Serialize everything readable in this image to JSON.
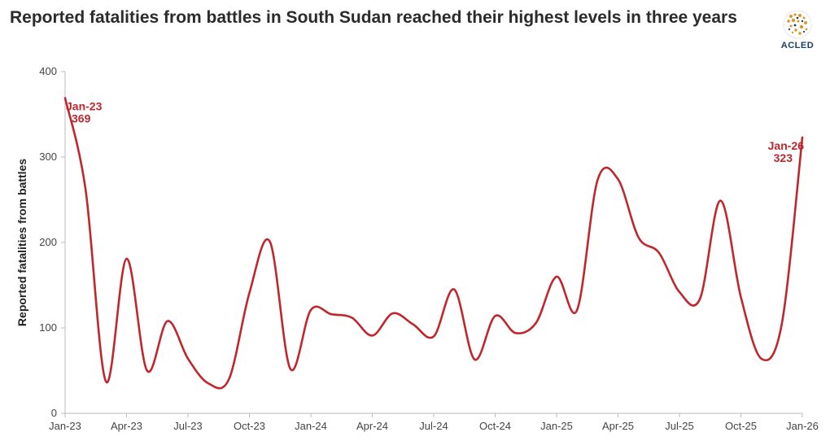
{
  "header": {
    "title": "Reported fatalities from battles in South Sudan reached their highest levels in three years"
  },
  "logo": {
    "text": "ACLED"
  },
  "colors": {
    "line": "#c0272d",
    "axis": "#bbbbbb",
    "text": "#444444",
    "logo_dots": "#d9962b"
  },
  "chart_data": {
    "type": "line",
    "title": "Reported fatalities from battles in South Sudan reached their highest levels in three years",
    "xlabel": "",
    "ylabel": "Reported fatalities from battles",
    "ylim": [
      0,
      400
    ],
    "yticks": [
      0,
      100,
      200,
      300,
      400
    ],
    "xticks": [
      {
        "i": 0,
        "label": "Jan-23"
      },
      {
        "i": 3,
        "label": "Apr-23"
      },
      {
        "i": 6,
        "label": "Jul-23"
      },
      {
        "i": 9,
        "label": "Oct-23"
      },
      {
        "i": 12,
        "label": "Jan-24"
      },
      {
        "i": 15,
        "label": "Apr-24"
      },
      {
        "i": 18,
        "label": "Jul-24"
      },
      {
        "i": 21,
        "label": "Oct-24"
      },
      {
        "i": 24,
        "label": "Jan-25"
      },
      {
        "i": 27,
        "label": "Apr-25"
      },
      {
        "i": 30,
        "label": "Jul-25"
      },
      {
        "i": 33,
        "label": "Oct-25"
      },
      {
        "i": 36,
        "label": "Jan-26"
      }
    ],
    "series": [
      {
        "name": "Reported fatalities from battles",
        "x": [
          "Jan-23",
          "Feb-23",
          "Mar-23",
          "Apr-23",
          "May-23",
          "Jun-23",
          "Jul-23",
          "Aug-23",
          "Sep-23",
          "Oct-23",
          "Nov-23",
          "Dec-23",
          "Jan-24",
          "Feb-24",
          "Mar-24",
          "Apr-24",
          "May-24",
          "Jun-24",
          "Jul-24",
          "Aug-24",
          "Sep-24",
          "Oct-24",
          "Nov-24",
          "Dec-24",
          "Jan-25",
          "Feb-25",
          "Mar-25",
          "Apr-25",
          "May-25",
          "Jun-25",
          "Jul-25",
          "Aug-25",
          "Sep-25",
          "Oct-25",
          "Nov-25",
          "Dec-25",
          "Jan-26"
        ],
        "values": [
          369,
          262,
          37,
          181,
          50,
          108,
          64,
          35,
          40,
          141,
          201,
          52,
          121,
          116,
          112,
          91,
          117,
          104,
          90,
          145,
          63,
          114,
          94,
          106,
          160,
          121,
          273,
          274,
          206,
          188,
          142,
          134,
          249,
          136,
          64,
          105,
          323
        ]
      }
    ],
    "annotations": [
      {
        "label": "Jan-23",
        "value_text": "369",
        "index": 0,
        "side": "right"
      },
      {
        "label": "Jan-26",
        "value_text": "323",
        "index": 36,
        "side": "left"
      }
    ]
  }
}
